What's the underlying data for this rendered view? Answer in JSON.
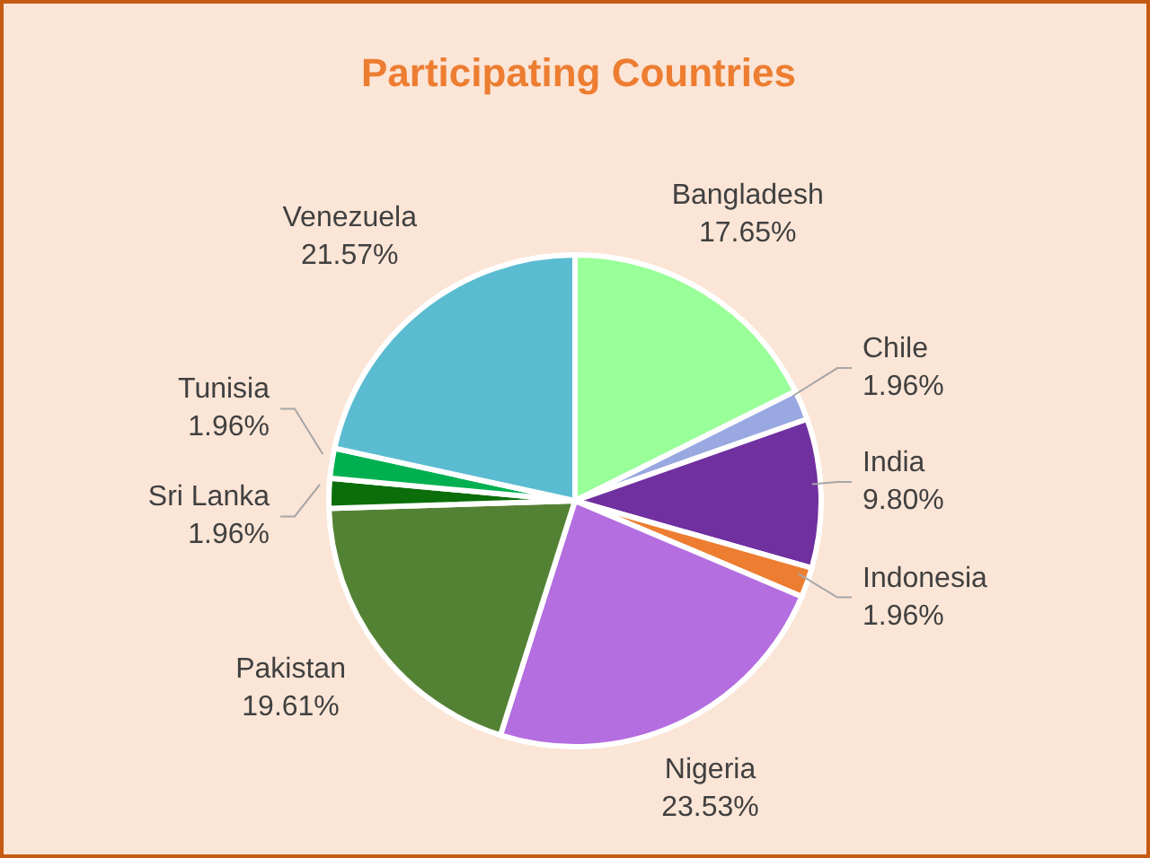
{
  "chart_data": {
    "type": "pie",
    "title": "Participating Countries",
    "categories": [
      "Bangladesh",
      "Chile",
      "India",
      "Indonesia",
      "Nigeria",
      "Pakistan",
      "Sri Lanka",
      "Tunisia",
      "Venezuela"
    ],
    "values": [
      17.65,
      1.96,
      9.8,
      1.96,
      23.53,
      19.61,
      1.96,
      1.96,
      21.57
    ],
    "value_labels": [
      "17.65%",
      "1.96%",
      "9.80%",
      "1.96%",
      "23.53%",
      "19.61%",
      "1.96%",
      "1.96%",
      "21.57%"
    ],
    "colors": [
      "#99ff99",
      "#99a8e0",
      "#7030a0",
      "#ed7d31",
      "#b46ee0",
      "#548235",
      "#0b6e0b",
      "#00b050",
      "#5bbcd1"
    ]
  }
}
